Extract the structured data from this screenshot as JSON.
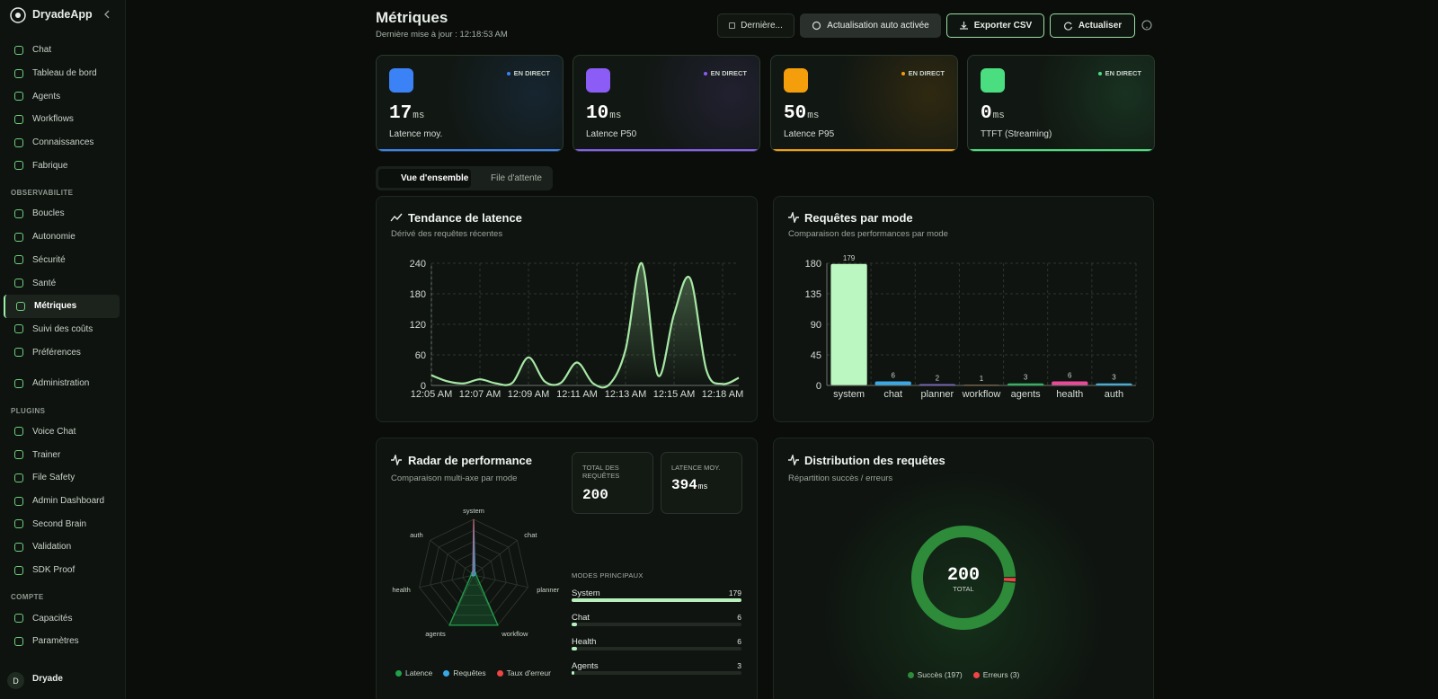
{
  "sidebar": {
    "brand": "DryadeApp",
    "groups": [
      {
        "items": [
          "Chat",
          "Tableau de bord",
          "Agents",
          "Workflows",
          "Connaissances",
          "Fabrique"
        ]
      },
      {
        "title": "OBSERVABILITE",
        "active": 4,
        "items": [
          "Boucles",
          "Autonomie",
          "Sécurité",
          "Santé",
          "Métriques",
          "Suivi des coûts",
          "Préférences"
        ]
      },
      {
        "items": [
          "Administration"
        ]
      },
      {
        "title": "PLUGINS",
        "items": [
          "Voice Chat",
          "Trainer",
          "File Safety",
          "Admin Dashboard",
          "Second Brain",
          "Validation",
          "SDK Proof"
        ]
      },
      {
        "title": "COMPTE",
        "items": [
          "Capacités",
          "Paramètres"
        ]
      }
    ],
    "user": {
      "initial": "D",
      "name": "Dryade"
    }
  },
  "header": {
    "title": "Métriques",
    "subtitle": "Dernière mise à jour : 12:18:53 AM",
    "buttons": [
      "Dernière...",
      "Actualisation auto activée",
      "Exporter CSV",
      "Actualiser"
    ]
  },
  "kpis": [
    {
      "value": 17,
      "unit": "ms",
      "label": "Latence moy.",
      "badge": "EN DIRECT",
      "color": "#3b82f6"
    },
    {
      "value": 10,
      "unit": "ms",
      "label": "Latence P50",
      "badge": "EN DIRECT",
      "color": "#8b5cf6"
    },
    {
      "value": 50,
      "unit": "ms",
      "label": "Latence P95",
      "badge": "EN DIRECT",
      "color": "#f59e0b"
    },
    {
      "value": 0,
      "unit": "ms",
      "label": "TTFT (Streaming)",
      "badge": "EN DIRECT",
      "color": "#4ade80"
    }
  ],
  "tabs": {
    "items": [
      "Vue d'ensemble",
      "File d'attente"
    ],
    "active": 0
  },
  "latency_chart": {
    "type": "line",
    "title": "Tendance de latence",
    "subtitle": "Dérivé des requêtes récentes",
    "categories": [
      "12:05 AM",
      null,
      null,
      "12:07 AM",
      null,
      null,
      "12:09 AM",
      null,
      null,
      "12:11 AM",
      null,
      null,
      "12:13 AM",
      null,
      null,
      "12:15 AM",
      null,
      null,
      "12:18 AM",
      null
    ],
    "values": [
      20,
      8,
      4,
      12,
      4,
      5,
      55,
      8,
      5,
      45,
      4,
      2,
      70,
      240,
      20,
      140,
      210,
      30,
      3,
      15
    ],
    "color": "#a7e8a5",
    "ylim": [
      0,
      240
    ],
    "yticks": [
      0,
      60,
      120,
      180,
      240
    ],
    "grid": true
  },
  "mode_chart": {
    "type": "bar",
    "title": "Requêtes par mode",
    "subtitle": "Comparaison des performances par mode",
    "categories": [
      "system",
      "chat",
      "planner",
      "workflow",
      "agents",
      "health",
      "auth"
    ],
    "values": [
      179,
      6,
      2,
      1,
      3,
      6,
      3
    ],
    "colors": [
      "#bbf7c0",
      "#3ba7e6",
      "#8b5cf6",
      "#f97316",
      "#22c55e",
      "#ec4899",
      "#38bdf8"
    ],
    "ylim": [
      0,
      180
    ],
    "yticks": [
      0,
      45,
      90,
      135,
      180
    ],
    "grid": true
  },
  "radar": {
    "type": "radar",
    "title": "Radar de performance",
    "subtitle": "Comparaison multi-axe par mode",
    "axes": [
      "system",
      "chat",
      "planner",
      "workflow",
      "agents",
      "health",
      "auth"
    ],
    "rlim": [
      0,
      100
    ],
    "series": [
      {
        "name": "Latence",
        "color": "#22a04a",
        "values": [
          10,
          5,
          5,
          100,
          100,
          5,
          5
        ]
      },
      {
        "name": "Requêtes",
        "color": "#3ba7e6",
        "values": [
          100,
          3,
          2,
          1,
          2,
          3,
          2
        ]
      },
      {
        "name": "Taux d'erreur",
        "color": "#ef4444",
        "values": [
          100,
          0,
          0,
          0,
          0,
          0,
          0
        ]
      }
    ],
    "stats": [
      {
        "label": "TOTAL DES REQUÊTES",
        "value": 200
      },
      {
        "label": "LATENCE MOY.",
        "value": 394,
        "unit": "ms"
      }
    ],
    "modes_title": "MODES PRINCIPAUX",
    "modes": [
      {
        "name": "System",
        "value": 179
      },
      {
        "name": "Chat",
        "value": 6
      },
      {
        "name": "Health",
        "value": 6
      },
      {
        "name": "Agents",
        "value": 3
      }
    ]
  },
  "distribution": {
    "type": "donut",
    "title": "Distribution des requêtes",
    "subtitle": "Répartition succès / erreurs",
    "total": 200,
    "total_label": "TOTAL",
    "segments": [
      {
        "label": "Succès (197)",
        "value": 197,
        "color": "#2e8b3a"
      },
      {
        "label": "Erreurs (3)",
        "value": 3,
        "color": "#ef4444"
      }
    ]
  }
}
